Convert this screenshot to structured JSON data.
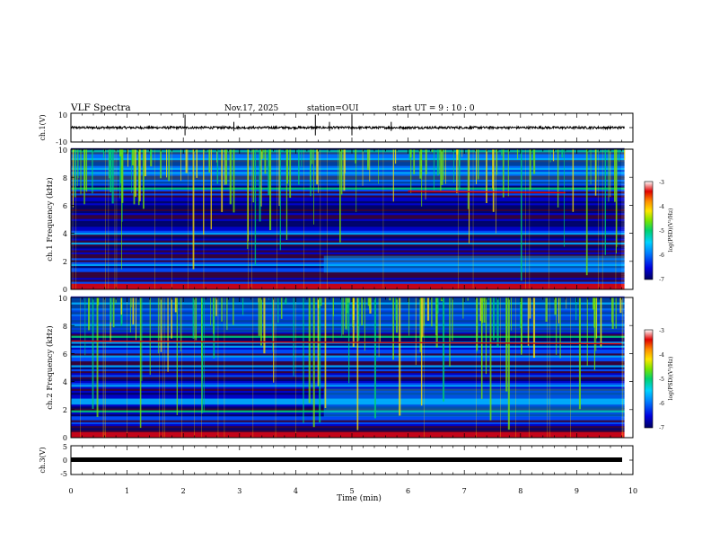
{
  "header": {
    "title": "VLF Spectra",
    "date": "Nov.17, 2025",
    "station": "station=OUI",
    "start_ut": "start UT =  9 : 10 : 0"
  },
  "chart_data": [
    {
      "type": "line",
      "name": "ch1-waveform",
      "ylabel": "ch.1(V)",
      "ylim": [
        -10,
        10
      ],
      "yticks": [
        "10",
        "-10"
      ],
      "xlim": [
        0,
        10
      ],
      "baseline": 0,
      "spikes_min": [
        2.03,
        2.9,
        4.35,
        4.6,
        5.0,
        5.7
      ]
    },
    {
      "type": "heatmap",
      "name": "ch1-spectrogram",
      "ylabel": "ch.1 Frequency (kHz)",
      "ylim": [
        0,
        10
      ],
      "yticks": [
        "0",
        "2",
        "4",
        "6",
        "8",
        "10"
      ],
      "xlim": [
        0,
        10
      ],
      "data_end_min": 9.85,
      "features": {
        "tone_line_khz": [
          7.0,
          6.9
        ],
        "tone_span_min": [
          6.0,
          8.8
        ],
        "broadband_band_khz": [
          1.2,
          2.4
        ]
      },
      "colorbar": {
        "label": "log(PSD)(V²/Hz)",
        "range": [
          -7,
          -3
        ],
        "ticks": [
          "-3",
          "-4",
          "-5",
          "-6",
          "-7"
        ]
      }
    },
    {
      "type": "heatmap",
      "name": "ch2-spectrogram",
      "ylabel": "ch.2 Frequency (kHz)",
      "ylim": [
        0,
        10
      ],
      "yticks": [
        "0",
        "2",
        "4",
        "6",
        "8",
        "10"
      ],
      "xlim": [
        0,
        10
      ],
      "data_end_min": 9.85,
      "features": {
        "tone_line_khz": [
          6.9,
          6.7
        ],
        "tone_span_min": [
          0.0,
          9.8
        ],
        "broadband_band_khz": [
          1.5,
          3.5
        ]
      },
      "colorbar": {
        "label": "log(PSD)(V²/Hz)",
        "range": [
          -7,
          -3
        ],
        "ticks": [
          "-3",
          "-4",
          "-5",
          "-6",
          "-7"
        ]
      }
    },
    {
      "type": "line",
      "name": "ch3-waveform",
      "ylabel": "ch.3(V)",
      "ylim": [
        -5,
        5
      ],
      "yticks": [
        "5",
        "0",
        "-5"
      ],
      "xlim": [
        0,
        10
      ],
      "baseline": 0
    }
  ],
  "xaxis": {
    "label": "Time (min)",
    "ticks": [
      "0",
      "1",
      "2",
      "3",
      "4",
      "5",
      "6",
      "7",
      "8",
      "9",
      "10"
    ]
  },
  "colors": {
    "colormap": [
      "#3c0028",
      "#000060",
      "#0000c8",
      "#0050ff",
      "#00b4ff",
      "#00d26e",
      "#78e600",
      "#ffe600",
      "#ff8c00",
      "#e10000",
      "#ffffff"
    ]
  }
}
